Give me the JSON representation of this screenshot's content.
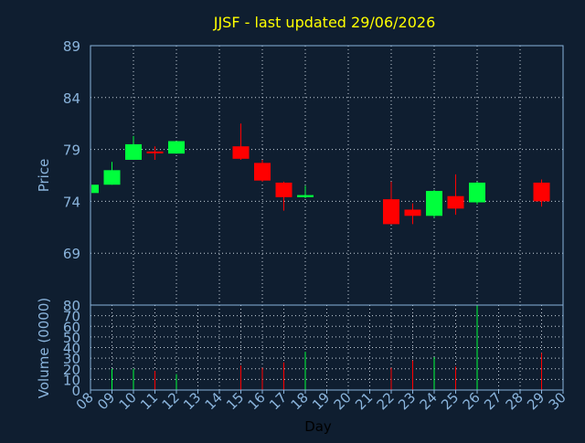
{
  "chart_data": {
    "type": "candlestick",
    "title": "JJSF - last updated 29/06/2026",
    "price_axis": {
      "label": "Price",
      "ticks": [
        89,
        84,
        79,
        74,
        69
      ],
      "ylim": [
        64,
        89
      ]
    },
    "volume_axis": {
      "label": "Volume (0000)",
      "ticks": [
        0,
        10,
        20,
        30,
        40,
        50,
        60,
        70,
        80
      ],
      "ylim": [
        0,
        80
      ]
    },
    "x_axis": {
      "label": "Day",
      "ticks": [
        "08",
        "09",
        "10",
        "11",
        "12",
        "13",
        "14",
        "15",
        "16",
        "17",
        "18",
        "19",
        "20",
        "21",
        "22",
        "23",
        "24",
        "25",
        "26",
        "27",
        "28",
        "29",
        "30"
      ]
    },
    "grid": true,
    "candles": [
      {
        "day": "08",
        "open": 74.8,
        "high": 75.6,
        "low": 74.6,
        "close": 75.6,
        "volume": 0
      },
      {
        "day": "09",
        "open": 75.6,
        "high": 77.8,
        "low": 75.6,
        "close": 77.0,
        "volume": 20
      },
      {
        "day": "10",
        "open": 78.0,
        "high": 80.3,
        "low": 78.0,
        "close": 79.5,
        "volume": 20
      },
      {
        "day": "11",
        "open": 78.8,
        "high": 79.3,
        "low": 78.0,
        "close": 78.7,
        "volume": 18
      },
      {
        "day": "12",
        "open": 78.6,
        "high": 79.8,
        "low": 78.6,
        "close": 79.8,
        "volume": 15
      },
      {
        "day": "15",
        "open": 79.3,
        "high": 81.5,
        "low": 78.0,
        "close": 78.1,
        "volume": 23
      },
      {
        "day": "16",
        "open": 77.7,
        "high": 78.0,
        "low": 75.9,
        "close": 76.0,
        "volume": 21
      },
      {
        "day": "17",
        "open": 75.8,
        "high": 75.9,
        "low": 73.1,
        "close": 74.4,
        "volume": 26
      },
      {
        "day": "18",
        "open": 74.4,
        "high": 75.5,
        "low": 74.3,
        "close": 74.6,
        "volume": 36
      },
      {
        "day": "22",
        "open": 74.2,
        "high": 75.9,
        "low": 71.8,
        "close": 71.8,
        "volume": 21
      },
      {
        "day": "23",
        "open": 73.2,
        "high": 73.8,
        "low": 71.8,
        "close": 72.6,
        "volume": 28
      },
      {
        "day": "24",
        "open": 72.6,
        "high": 75.1,
        "low": 72.4,
        "close": 75.0,
        "volume": 31
      },
      {
        "day": "25",
        "open": 74.5,
        "high": 76.6,
        "low": 72.7,
        "close": 73.3,
        "volume": 22
      },
      {
        "day": "26",
        "open": 73.9,
        "high": 75.9,
        "low": 73.7,
        "close": 75.8,
        "volume": 80
      },
      {
        "day": "29",
        "open": 75.8,
        "high": 76.1,
        "low": 73.5,
        "close": 74.0,
        "volume": 35
      }
    ],
    "colors": {
      "background": "#0f1e30",
      "up": "#00ff3c",
      "down": "#ff0000",
      "axis": "#8ab4dc",
      "grid": "#c8d2dc",
      "title": "#ffff00"
    }
  }
}
